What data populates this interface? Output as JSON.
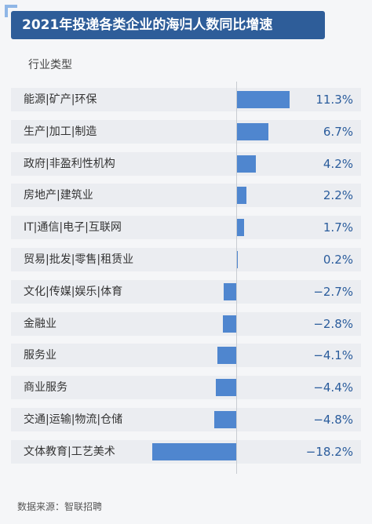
{
  "chart_data": {
    "type": "bar",
    "title": "2021年投递各类企业的海归人数同比增速",
    "category_header": "行业类型",
    "categories": [
      "能源|矿产|环保",
      "生产|加工|制造",
      "政府|非盈利性机构",
      "房地产|建筑业",
      "IT|通信|电子|互联网",
      "贸易|批发|零售|租赁业",
      "文化|传媒|娱乐|体育",
      "金融业",
      "服务业",
      "商业服务",
      "交通|运输|物流|仓储",
      "文体教育|工艺美术"
    ],
    "values": [
      11.3,
      6.7,
      4.2,
      2.2,
      1.7,
      0.2,
      -2.7,
      -2.8,
      -4.1,
      -4.4,
      -4.8,
      -18.2
    ],
    "value_labels": [
      "11.3%",
      "6.7%",
      "4.2%",
      "2.2%",
      "1.7%",
      "0.2%",
      "−2.7%",
      "−2.8%",
      "−4.1%",
      "−4.4%",
      "−4.8%",
      "−18.2%"
    ],
    "orientation": "horizontal",
    "grid": false,
    "bar_color": "#4f86cf",
    "source": "数据来源：智联招聘"
  },
  "colors": {
    "title_bg": "#2e5d99",
    "value_text": "#2a5c9c",
    "row_bg": "#ebedf1"
  }
}
